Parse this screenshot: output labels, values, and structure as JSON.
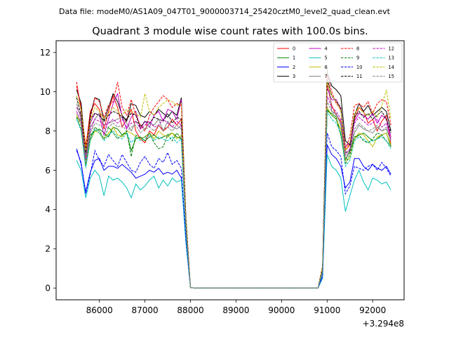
{
  "figure": {
    "suptitle": "Data file: modeM0/AS1A09_047T01_9000003714_25420cztM0_level2_quad_clean.evt",
    "title": "Quadrant 3 module wise count rates with 100.0s bins.",
    "x_offset_label": "+3.294e8"
  },
  "chart_data": {
    "type": "line",
    "title": "Quadrant 3 module wise count rates with 100.0s bins.",
    "xlabel": "",
    "ylabel": "",
    "x_offset": "+3.294e8",
    "xlim": [
      85050,
      92690
    ],
    "ylim": [
      -0.6,
      12.6
    ],
    "x_ticks": [
      86000,
      87000,
      88000,
      89000,
      90000,
      91000,
      92000
    ],
    "y_ticks": [
      0,
      2,
      4,
      6,
      8,
      10,
      12
    ],
    "grid": false,
    "legend_position": "top-right",
    "legend_columns": 4,
    "x": [
      85500,
      85600,
      85700,
      85800,
      85900,
      86000,
      86100,
      86200,
      86300,
      86400,
      86500,
      86600,
      86700,
      86800,
      86900,
      87000,
      87100,
      87200,
      87300,
      87400,
      87500,
      87600,
      87700,
      87800,
      87900,
      88000,
      88100,
      88200,
      88300,
      88400,
      88500,
      88600,
      88700,
      88800,
      88900,
      89000,
      89100,
      89200,
      89300,
      89400,
      89500,
      89600,
      89700,
      89800,
      89900,
      90000,
      90100,
      90200,
      90300,
      90400,
      90500,
      90600,
      90700,
      90800,
      90900,
      91000,
      91100,
      91200,
      91300,
      91400,
      91500,
      91600,
      91700,
      91800,
      91900,
      92000,
      92100,
      92200,
      92300,
      92400
    ],
    "series": [
      {
        "name": "0",
        "color": "#ff0000",
        "dashed": false,
        "values": [
          10.3,
          9.2,
          7.1,
          9.0,
          9.4,
          9.1,
          8.1,
          9.0,
          9.8,
          9.2,
          8.2,
          8.6,
          9.1,
          8.0,
          7.6,
          7.4,
          8.0,
          7.8,
          8.3,
          8.0,
          8.2,
          8.6,
          8.3,
          8.6,
          3.4,
          0.02,
          0,
          0,
          0,
          0,
          0,
          0,
          0,
          0,
          0,
          0,
          0,
          0,
          0,
          0,
          0,
          0,
          0,
          0,
          0,
          0,
          0,
          0,
          0,
          0,
          0,
          0,
          0,
          0,
          1.0,
          10.4,
          9.3,
          8.8,
          8.5,
          7.0,
          7.3,
          8.6,
          9.2,
          9.0,
          8.4,
          8.6,
          8.0,
          8.5,
          8.8,
          7.3
        ]
      },
      {
        "name": "1",
        "color": "#008000",
        "dashed": false,
        "values": [
          8.7,
          8.5,
          6.5,
          7.8,
          8.0,
          8.1,
          7.9,
          7.7,
          8.2,
          8.1,
          7.8,
          7.9,
          7.0,
          7.6,
          7.7,
          7.5,
          7.7,
          7.8,
          7.6,
          7.7,
          7.8,
          7.9,
          7.7,
          7.6,
          3.0,
          0.02,
          0,
          0,
          0,
          0,
          0,
          0,
          0,
          0,
          0,
          0,
          0,
          0,
          0,
          0,
          0,
          0,
          0,
          0,
          0,
          0,
          0,
          0,
          0,
          0,
          0,
          0,
          0,
          0,
          0.8,
          9.0,
          8.9,
          8.7,
          7.8,
          6.5,
          7.0,
          7.6,
          7.8,
          7.9,
          7.7,
          7.5,
          7.6,
          7.8,
          7.9,
          7.2
        ]
      },
      {
        "name": "2",
        "color": "#0000ff",
        "dashed": false,
        "values": [
          7.1,
          6.3,
          4.9,
          5.9,
          6.5,
          6.6,
          6.0,
          6.2,
          6.2,
          6.1,
          6.3,
          6.1,
          5.9,
          5.6,
          5.7,
          5.8,
          6.0,
          5.9,
          6.1,
          5.8,
          5.9,
          5.8,
          6.0,
          5.6,
          2.4,
          0.02,
          0,
          0,
          0,
          0,
          0,
          0,
          0,
          0,
          0,
          0,
          0,
          0,
          0,
          0,
          0,
          0,
          0,
          0,
          0,
          0,
          0,
          0,
          0,
          0,
          0,
          0,
          0,
          0,
          0.6,
          7.3,
          6.8,
          6.6,
          6.2,
          5.1,
          5.4,
          6.6,
          6.6,
          6.2,
          6.0,
          6.3,
          6.1,
          6.0,
          6.2,
          5.8
        ]
      },
      {
        "name": "3",
        "color": "#000000",
        "dashed": false,
        "values": [
          10.1,
          9.4,
          6.8,
          8.8,
          9.7,
          9.6,
          8.5,
          9.2,
          9.9,
          9.5,
          8.8,
          8.5,
          9.4,
          9.3,
          8.8,
          8.7,
          9.0,
          8.8,
          9.1,
          8.9,
          8.7,
          9.0,
          8.8,
          9.7,
          3.6,
          0.02,
          0,
          0,
          0,
          0,
          0,
          0,
          0,
          0,
          0,
          0,
          0,
          0,
          0,
          0,
          0,
          0,
          0,
          0,
          0,
          0,
          0,
          0,
          0,
          0,
          0,
          0,
          0,
          0,
          1.1,
          11.0,
          10.3,
          10.1,
          9.8,
          7.5,
          7.3,
          8.8,
          9.4,
          9.0,
          9.3,
          8.8,
          9.0,
          9.2,
          9.0,
          8.0
        ]
      },
      {
        "name": "4",
        "color": "#bf00bf",
        "dashed": false,
        "values": [
          9.2,
          8.8,
          6.6,
          8.4,
          8.9,
          8.8,
          7.8,
          8.6,
          9.4,
          9.9,
          8.7,
          8.1,
          8.7,
          9.0,
          8.1,
          8.5,
          8.2,
          8.8,
          9.0,
          8.5,
          9.1,
          9.0,
          8.6,
          9.6,
          3.3,
          0.02,
          0,
          0,
          0,
          0,
          0,
          0,
          0,
          0,
          0,
          0,
          0,
          0,
          0,
          0,
          0,
          0,
          0,
          0,
          0,
          0,
          0,
          0,
          0,
          0,
          0,
          0,
          0,
          0,
          1.0,
          10.2,
          9.6,
          9.6,
          9.1,
          7.2,
          7.4,
          8.5,
          8.9,
          8.8,
          8.6,
          8.9,
          8.4,
          8.8,
          8.6,
          7.7
        ]
      },
      {
        "name": "5",
        "color": "#00bfbf",
        "dashed": false,
        "values": [
          6.5,
          6.0,
          4.6,
          5.6,
          6.0,
          5.7,
          4.7,
          5.7,
          5.5,
          5.6,
          5.4,
          5.1,
          4.6,
          5.3,
          5.0,
          5.2,
          5.5,
          5.7,
          5.1,
          5.5,
          5.2,
          5.6,
          5.4,
          5.5,
          2.3,
          0.02,
          0,
          0,
          0,
          0,
          0,
          0,
          0,
          0,
          0,
          0,
          0,
          0,
          0,
          0,
          0,
          0,
          0,
          0,
          0,
          0,
          0,
          0,
          0,
          0,
          0,
          0,
          0,
          0,
          0.5,
          6.8,
          6.2,
          6.0,
          5.6,
          3.9,
          4.7,
          5.5,
          6.0,
          5.4,
          5.0,
          5.6,
          5.5,
          5.3,
          5.4,
          5.0
        ]
      },
      {
        "name": "6",
        "color": "#bfbf00",
        "dashed": false,
        "values": [
          8.8,
          8.3,
          6.2,
          7.5,
          8.0,
          7.9,
          7.6,
          7.9,
          8.2,
          7.8,
          7.7,
          8.0,
          7.9,
          7.7,
          7.6,
          7.7,
          7.9,
          7.6,
          8.0,
          7.8,
          7.7,
          7.9,
          7.6,
          7.8,
          3.1,
          0.02,
          0,
          0,
          0,
          0,
          0,
          0,
          0,
          0,
          0,
          0,
          0,
          0,
          0,
          0,
          0,
          0,
          0,
          0,
          0,
          0,
          0,
          0,
          0,
          0,
          0,
          0,
          0,
          0,
          0.9,
          9.2,
          8.8,
          8.6,
          8.1,
          6.5,
          6.6,
          7.6,
          7.9,
          7.8,
          7.5,
          7.2,
          7.7,
          7.8,
          7.9,
          7.3
        ]
      },
      {
        "name": "7",
        "color": "#808080",
        "dashed": false,
        "values": [
          9.4,
          8.6,
          6.7,
          8.2,
          8.6,
          8.9,
          8.3,
          8.4,
          8.5,
          8.6,
          8.7,
          8.4,
          8.0,
          8.5,
          8.3,
          8.1,
          8.4,
          8.3,
          8.6,
          8.0,
          8.5,
          8.2,
          8.1,
          8.3,
          3.2,
          0.02,
          0,
          0,
          0,
          0,
          0,
          0,
          0,
          0,
          0,
          0,
          0,
          0,
          0,
          0,
          0,
          0,
          0,
          0,
          0,
          0,
          0,
          0,
          0,
          0,
          0,
          0,
          0,
          0,
          1.0,
          11.3,
          9.0,
          8.9,
          8.3,
          6.6,
          6.9,
          7.9,
          8.3,
          8.1,
          8.0,
          7.9,
          8.2,
          8.0,
          8.1,
          7.5
        ]
      },
      {
        "name": "8",
        "color": "#ff0000",
        "dashed": true,
        "values": [
          10.5,
          9.0,
          7.3,
          8.6,
          9.7,
          9.5,
          8.7,
          9.3,
          9.5,
          10.5,
          9.2,
          8.8,
          9.6,
          8.8,
          8.3,
          8.0,
          8.8,
          9.2,
          9.5,
          9.8,
          9.6,
          9.2,
          9.4,
          9.3,
          3.5,
          0.02,
          0,
          0,
          0,
          0,
          0,
          0,
          0,
          0,
          0,
          0,
          0,
          0,
          0,
          0,
          0,
          0,
          0,
          0,
          0,
          0,
          0,
          0,
          0,
          0,
          0,
          0,
          0,
          0,
          1.1,
          10.9,
          10.0,
          9.4,
          9.1,
          7.1,
          7.7,
          9.3,
          9.4,
          9.2,
          9.5,
          8.9,
          9.4,
          9.6,
          9.5,
          8.3
        ]
      },
      {
        "name": "9",
        "color": "#008000",
        "dashed": true,
        "values": [
          8.7,
          8.1,
          6.2,
          7.6,
          8.2,
          8.0,
          7.6,
          8.2,
          7.9,
          7.6,
          7.8,
          8.0,
          6.7,
          7.8,
          7.6,
          7.7,
          7.9,
          7.4,
          7.1,
          7.2,
          7.8,
          7.5,
          7.9,
          7.6,
          3.0,
          0.02,
          0,
          0,
          0,
          0,
          0,
          0,
          0,
          0,
          0,
          0,
          0,
          0,
          0,
          0,
          0,
          0,
          0,
          0,
          0,
          0,
          0,
          0,
          0,
          0,
          0,
          0,
          0,
          0,
          0.8,
          9.1,
          8.8,
          8.6,
          7.8,
          6.3,
          6.8,
          7.7,
          7.8,
          7.5,
          7.4,
          7.6,
          7.9,
          7.8,
          7.5,
          7.2
        ]
      },
      {
        "name": "10",
        "color": "#0000ff",
        "dashed": true,
        "values": [
          7.0,
          6.4,
          4.8,
          5.8,
          7.0,
          6.5,
          6.2,
          6.8,
          6.5,
          6.2,
          6.8,
          6.4,
          6.0,
          5.9,
          6.4,
          6.7,
          6.3,
          6.1,
          6.6,
          6.4,
          6.9,
          6.3,
          6.5,
          6.1,
          2.5,
          0.02,
          0,
          0,
          0,
          0,
          0,
          0,
          0,
          0,
          0,
          0,
          0,
          0,
          0,
          0,
          0,
          0,
          0,
          0,
          0,
          0,
          0,
          0,
          0,
          0,
          0,
          0,
          0,
          0,
          0.6,
          7.9,
          7.2,
          7.0,
          6.7,
          4.8,
          5.2,
          6.2,
          6.1,
          6.0,
          6.2,
          6.3,
          6.0,
          6.4,
          6.1,
          5.7
        ]
      },
      {
        "name": "11",
        "color": "#000000",
        "dashed": true,
        "values": [
          9.7,
          8.8,
          6.9,
          8.6,
          8.9,
          8.8,
          8.5,
          8.8,
          9.0,
          8.9,
          8.7,
          8.6,
          8.9,
          8.8,
          8.2,
          8.5,
          8.4,
          8.7,
          8.6,
          8.5,
          8.9,
          8.4,
          8.7,
          8.6,
          3.4,
          0.02,
          0,
          0,
          0,
          0,
          0,
          0,
          0,
          0,
          0,
          0,
          0,
          0,
          0,
          0,
          0,
          0,
          0,
          0,
          0,
          0,
          0,
          0,
          0,
          0,
          0,
          0,
          0,
          0,
          1.0,
          10.6,
          9.8,
          9.5,
          9.2,
          6.9,
          7.0,
          8.7,
          9.0,
          8.7,
          8.9,
          8.6,
          8.8,
          9.0,
          8.6,
          7.9
        ]
      },
      {
        "name": "12",
        "color": "#bf00bf",
        "dashed": true,
        "values": [
          9.0,
          8.5,
          6.5,
          8.0,
          8.6,
          8.5,
          8.3,
          8.4,
          8.6,
          8.4,
          8.6,
          8.2,
          8.4,
          8.5,
          8.1,
          8.3,
          8.5,
          8.2,
          8.3,
          8.6,
          8.4,
          8.2,
          8.5,
          8.3,
          3.2,
          0.02,
          0,
          0,
          0,
          0,
          0,
          0,
          0,
          0,
          0,
          0,
          0,
          0,
          0,
          0,
          0,
          0,
          0,
          0,
          0,
          0,
          0,
          0,
          0,
          0,
          0,
          0,
          0,
          0,
          0.9,
          9.8,
          9.2,
          9.0,
          8.6,
          6.8,
          7.1,
          8.4,
          8.7,
          8.5,
          8.3,
          8.4,
          8.6,
          8.2,
          8.4,
          7.6
        ]
      },
      {
        "name": "13",
        "color": "#00bfbf",
        "dashed": true,
        "values": [
          8.6,
          8.0,
          6.1,
          7.5,
          8.1,
          7.9,
          7.5,
          7.8,
          8.0,
          7.7,
          7.6,
          7.9,
          7.4,
          7.7,
          7.5,
          7.6,
          7.8,
          7.5,
          7.7,
          7.6,
          7.5,
          7.7,
          7.4,
          7.6,
          2.9,
          0.02,
          0,
          0,
          0,
          0,
          0,
          0,
          0,
          0,
          0,
          0,
          0,
          0,
          0,
          0,
          0,
          0,
          0,
          0,
          0,
          0,
          0,
          0,
          0,
          0,
          0,
          0,
          0,
          0,
          0.8,
          9.0,
          8.6,
          8.4,
          7.9,
          6.2,
          6.5,
          7.5,
          7.7,
          7.6,
          7.4,
          7.5,
          7.6,
          7.7,
          7.5,
          7.1
        ]
      },
      {
        "name": "14",
        "color": "#bfbf00",
        "dashed": true,
        "values": [
          9.8,
          9.1,
          7.0,
          8.5,
          9.2,
          9.0,
          8.6,
          8.9,
          9.2,
          9.0,
          8.8,
          9.1,
          9.0,
          8.9,
          8.7,
          9.9,
          9.0,
          8.8,
          9.2,
          9.4,
          9.6,
          9.5,
          9.3,
          9.4,
          3.5,
          0.02,
          0,
          0,
          0,
          0,
          0,
          0,
          0,
          0,
          0,
          0,
          0,
          0,
          0,
          0,
          0,
          0,
          0,
          0,
          0,
          0,
          0,
          0,
          0,
          0,
          0,
          0,
          0,
          0,
          1.1,
          10.5,
          9.8,
          9.5,
          9.0,
          7.0,
          7.4,
          8.9,
          9.2,
          8.9,
          8.8,
          9.0,
          8.7,
          9.3,
          10.1,
          8.6
        ]
      },
      {
        "name": "15",
        "color": "#808080",
        "dashed": true,
        "values": [
          8.9,
          8.3,
          6.4,
          7.9,
          8.4,
          8.3,
          8.1,
          8.2,
          8.4,
          8.2,
          8.3,
          8.0,
          8.2,
          8.3,
          7.9,
          8.1,
          8.2,
          8.0,
          8.3,
          8.1,
          8.2,
          8.0,
          8.3,
          8.1,
          3.1,
          0.02,
          0,
          0,
          0,
          0,
          0,
          0,
          0,
          0,
          0,
          0,
          0,
          0,
          0,
          0,
          0,
          0,
          0,
          0,
          0,
          0,
          0,
          0,
          0,
          0,
          0,
          0,
          0,
          0,
          0.9,
          9.5,
          9.0,
          8.8,
          8.4,
          6.7,
          7.0,
          8.1,
          8.4,
          8.2,
          8.0,
          8.1,
          8.3,
          8.0,
          8.2,
          7.5
        ]
      }
    ]
  }
}
